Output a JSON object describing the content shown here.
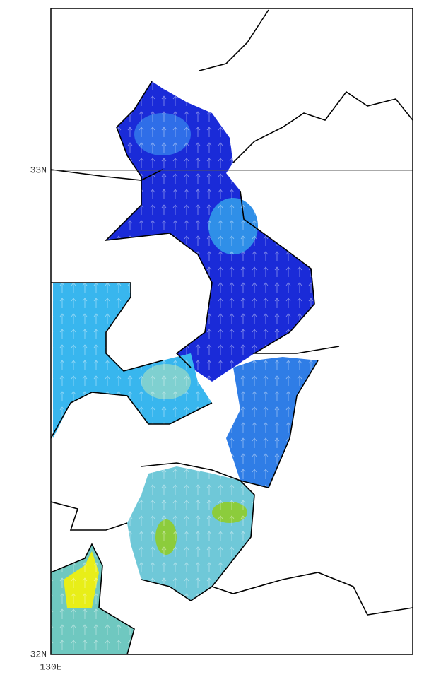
{
  "map": {
    "lat_labels": [
      "33N",
      "32N"
    ],
    "lon_labels": [
      "130E"
    ]
  }
}
